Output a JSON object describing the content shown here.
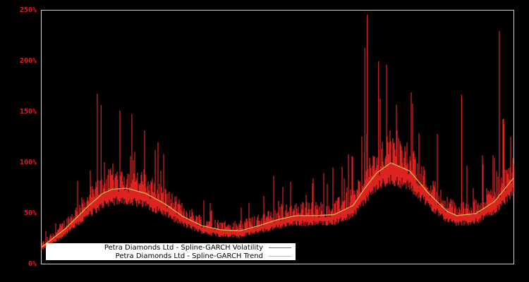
{
  "chart_data": {
    "type": "line",
    "title": "",
    "xlabel": "",
    "ylabel": "",
    "ylim": [
      0,
      250
    ],
    "y_ticks": [
      "0%",
      "50%",
      "100%",
      "150%",
      "200%",
      "250%"
    ],
    "grid": false,
    "legend_position": "lower left",
    "background": "#000000",
    "series": [
      {
        "name": "Petra Diamonds Ltd - Spline-GARCH Volatility",
        "color": "#dd2222",
        "x_frac": [
          0.0,
          0.03,
          0.06,
          0.09,
          0.12,
          0.15,
          0.18,
          0.21,
          0.24,
          0.27,
          0.3,
          0.33,
          0.36,
          0.39,
          0.42,
          0.45,
          0.48,
          0.51,
          0.54,
          0.57,
          0.6,
          0.63,
          0.66,
          0.69,
          0.72,
          0.75,
          0.78,
          0.81,
          0.84,
          0.87,
          0.9,
          0.93,
          0.96,
          0.98,
          1.0
        ],
        "values": [
          18,
          28,
          40,
          55,
          95,
          110,
          85,
          70,
          60,
          55,
          42,
          35,
          33,
          40,
          45,
          55,
          60,
          50,
          45,
          58,
          75,
          100,
          120,
          150,
          95,
          65,
          50,
          45,
          55,
          70,
          75,
          85,
          120,
          100,
          95
        ],
        "peaks": [
          {
            "x_frac": 0.118,
            "value": 168
          },
          {
            "x_frac": 0.126,
            "value": 157
          },
          {
            "x_frac": 0.69,
            "value": 246
          },
          {
            "x_frac": 0.685,
            "value": 213
          },
          {
            "x_frac": 0.714,
            "value": 200
          },
          {
            "x_frac": 0.97,
            "value": 230
          },
          {
            "x_frac": 0.98,
            "value": 138
          },
          {
            "x_frac": 0.89,
            "value": 167
          }
        ]
      },
      {
        "name": "Petra Diamonds Ltd - Spline-GARCH Trend",
        "color": "#d4b84a",
        "x_frac": [
          0.0,
          0.05,
          0.1,
          0.13,
          0.15,
          0.18,
          0.22,
          0.26,
          0.3,
          0.34,
          0.38,
          0.42,
          0.46,
          0.5,
          0.54,
          0.58,
          0.62,
          0.66,
          0.685,
          0.71,
          0.74,
          0.78,
          0.82,
          0.86,
          0.88,
          0.92,
          0.96,
          1.0
        ],
        "values": [
          17,
          35,
          58,
          70,
          74,
          75,
          70,
          60,
          47,
          38,
          34,
          33,
          38,
          44,
          48,
          48,
          49,
          58,
          75,
          90,
          100,
          92,
          70,
          52,
          48,
          50,
          62,
          85
        ]
      }
    ]
  },
  "axis": {
    "y_ticks": [
      "250%",
      "200%",
      "150%",
      "100%",
      "50%",
      "0%"
    ]
  },
  "legend": {
    "items": [
      {
        "label": "Petra Diamonds Ltd - Spline-GARCH Volatility",
        "color": "#dd4444"
      },
      {
        "label": "Petra Diamonds Ltd - Spline-GARCH Trend",
        "color": "#d4b84a"
      }
    ]
  }
}
